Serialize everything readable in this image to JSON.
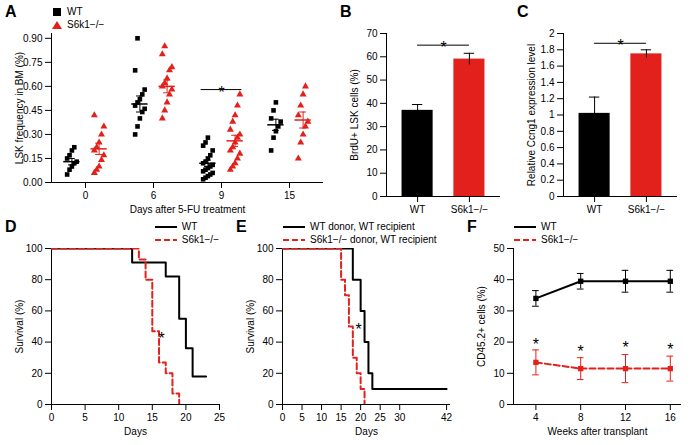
{
  "chart_data": [
    {
      "title": "A",
      "type": "scatter",
      "x_label": "Days after 5-FU treatment",
      "y_label": "LSK frequency in BM (%)",
      "categories": [
        "0",
        "6",
        "9",
        "15"
      ],
      "ylim": [
        0,
        0.93
      ],
      "yticks": [
        {
          "value": 0,
          "label": "0.00"
        },
        0.15,
        {
          "value": 0.3,
          "label": "0.30"
        },
        0.45,
        {
          "value": 0.6,
          "label": "0.60"
        },
        0.75,
        {
          "value": 0.9,
          "label": "0.90"
        }
      ],
      "legend": "top-left",
      "series": [
        {
          "name": "WT",
          "color": "#000000",
          "marker": "square",
          "points": [
            [
              0.05,
              0.08,
              0.1,
              0.12,
              0.13,
              0.15,
              0.17,
              0.2,
              0.22
            ],
            [
              0.3,
              0.35,
              0.4,
              0.44,
              0.46,
              0.48,
              0.5,
              0.52,
              0.55,
              0.58,
              0.7,
              0.9
            ],
            [
              0.02,
              0.03,
              0.04,
              0.05,
              0.06,
              0.07,
              0.08,
              0.09,
              0.1,
              0.11,
              0.12,
              0.13,
              0.15,
              0.17,
              0.2,
              0.23,
              0.25,
              0.28
            ],
            [
              0.2,
              0.28,
              0.32,
              0.35,
              0.38,
              0.4,
              0.45,
              0.5
            ]
          ],
          "values": [
            0.13,
            0.49,
            0.12,
            0.36
          ],
          "errors": [
            0.02,
            0.05,
            0.02,
            0.035
          ]
        },
        {
          "name": "S6k1−/−",
          "color": "#e3211c",
          "marker": "triangle",
          "points": [
            [
              0.06,
              0.08,
              0.1,
              0.14,
              0.17,
              0.2,
              0.22,
              0.25,
              0.3,
              0.35,
              0.42
            ],
            [
              0.4,
              0.45,
              0.5,
              0.55,
              0.58,
              0.6,
              0.62,
              0.65,
              0.7,
              0.72,
              0.8,
              0.85
            ],
            [
              0.08,
              0.1,
              0.12,
              0.15,
              0.18,
              0.2,
              0.22,
              0.25,
              0.28,
              0.3,
              0.33,
              0.38,
              0.42,
              0.48,
              0.55
            ],
            [
              0.15,
              0.25,
              0.3,
              0.35,
              0.38,
              0.42,
              0.48,
              0.55,
              0.6
            ]
          ],
          "values": [
            0.21,
            0.6,
            0.26,
            0.39
          ],
          "errors": [
            0.035,
            0.04,
            0.035,
            0.05
          ]
        }
      ],
      "annotations": [
        {
          "text": "*",
          "x": "9",
          "y": 0.58
        }
      ]
    },
    {
      "title": "B",
      "type": "bar",
      "y_label": "BrdU+ LSK cells (%)",
      "categories": [
        "WT",
        "S6k1−/−"
      ],
      "values": [
        37,
        59
      ],
      "errors": [
        2.5,
        2.5
      ],
      "colors": [
        "#000000",
        "#e3211c"
      ],
      "ylim": [
        0,
        70
      ],
      "yticks": [
        0,
        10,
        20,
        30,
        40,
        50,
        60,
        70
      ],
      "annotations": [
        {
          "text": "*",
          "y": 65
        }
      ]
    },
    {
      "title": "C",
      "type": "bar",
      "y_label": "Relative Ccng1 expression level",
      "categories": [
        "WT",
        "S6k1−/−"
      ],
      "values": [
        1.02,
        1.75
      ],
      "errors": [
        0.2,
        0.05
      ],
      "colors": [
        "#000000",
        "#e3211c"
      ],
      "ylim": [
        0,
        2
      ],
      "yticks": [
        0,
        0.2,
        0.4,
        0.6,
        0.8,
        1,
        1.2,
        1.4,
        1.6,
        1.8,
        2
      ],
      "annotations": [
        {
          "text": "*",
          "y": 1.88
        }
      ]
    },
    {
      "title": "D",
      "type": "step",
      "x_label": "Days",
      "y_label": "Survival (%)",
      "xlim": [
        0,
        25
      ],
      "xticks": [
        0,
        5,
        10,
        15,
        20,
        25
      ],
      "ylim": [
        0,
        100
      ],
      "yticks": [
        0,
        20,
        40,
        60,
        80,
        100
      ],
      "legend": "top-right",
      "series": [
        {
          "name": "WT",
          "color": "#000000",
          "line_style": "solid",
          "x": [
            0,
            12,
            17,
            19,
            20,
            21,
            23
          ],
          "values": [
            100,
            91,
            82,
            55,
            36,
            18,
            18
          ]
        },
        {
          "name": "S6k1−/−",
          "color": "#e3211c",
          "line_style": "dashed",
          "x": [
            0,
            13,
            14,
            15,
            16,
            17,
            18,
            19
          ],
          "values": [
            100,
            93,
            80,
            47,
            27,
            20,
            7,
            0
          ]
        }
      ],
      "annotations": [
        {
          "text": "*",
          "x": 16.4,
          "y": 42
        }
      ]
    },
    {
      "title": "E",
      "type": "step",
      "x_label": "Days",
      "y_label": "Survival (%)",
      "xlim": [
        0,
        43
      ],
      "xticks": [
        0,
        5,
        10,
        15,
        20,
        25,
        30,
        42
      ],
      "ylim": [
        0,
        100
      ],
      "yticks": [
        0,
        20,
        40,
        60,
        80,
        100
      ],
      "legend": "top-left",
      "series": [
        {
          "name": "WT donor, WT recipient",
          "color": "#000000",
          "line_style": "solid",
          "x": [
            0,
            18,
            20,
            21,
            22,
            23,
            42
          ],
          "values": [
            100,
            80,
            60,
            40,
            20,
            10,
            10
          ]
        },
        {
          "name": "S6k1−/− donor, WT recipient",
          "color": "#e3211c",
          "line_style": "dashed",
          "x": [
            0,
            15,
            16,
            17,
            18,
            19,
            20,
            21
          ],
          "values": [
            100,
            80,
            70,
            50,
            30,
            20,
            10,
            0
          ]
        }
      ],
      "annotations": [
        {
          "text": "*",
          "x": 19.5,
          "y": 48
        }
      ]
    },
    {
      "title": "F",
      "type": "line",
      "x_label": "Weeks after transplant",
      "y_label": "CD45.2+ cells (%)",
      "x": [
        4,
        8,
        12,
        16
      ],
      "xlim": [
        2,
        17
      ],
      "xticks": [
        4,
        8,
        12,
        16
      ],
      "ylim": [
        0,
        50
      ],
      "yticks": [
        0,
        10,
        20,
        30,
        40,
        50
      ],
      "legend": "top-left",
      "series": [
        {
          "name": "WT",
          "color": "#000000",
          "line_style": "solid",
          "marker": "square",
          "values": [
            34,
            39.5,
            39.5,
            39.5
          ],
          "errors": [
            2.5,
            2.5,
            3.5,
            3.5
          ]
        },
        {
          "name": "S6k1−/−",
          "color": "#e3211c",
          "line_style": "dashed",
          "marker": "square",
          "values": [
            13.5,
            11.5,
            11.5,
            11.5
          ],
          "errors": [
            4,
            3.5,
            4.5,
            4
          ]
        }
      ],
      "annotations": [
        {
          "text": "*",
          "x": 4,
          "y": 19
        },
        {
          "text": "*",
          "x": 8,
          "y": 17
        },
        {
          "text": "*",
          "x": 12,
          "y": 18
        },
        {
          "text": "*",
          "x": 16,
          "y": 17.5
        }
      ]
    }
  ]
}
